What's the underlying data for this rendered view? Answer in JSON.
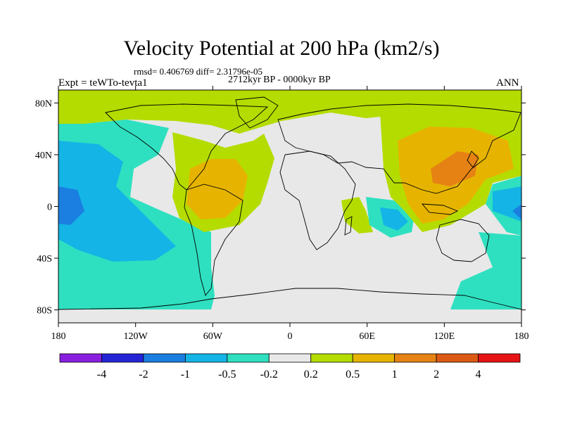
{
  "title": "Velocity Potential at 200 hPa (km2/s)",
  "stats": "rmsd= 0.406769 diff= 2.31796e-05",
  "period": "2712kyr BP - 0000kyr BP",
  "experiment": "Expt = teWTo-tevta1",
  "season": "ANN",
  "lat_ticks": [
    "80N",
    "40N",
    "0",
    "40S",
    "80S"
  ],
  "lon_ticks": [
    "180",
    "120W",
    "60W",
    "0",
    "60E",
    "120E",
    "180"
  ],
  "colorbar": {
    "labels": [
      "-4",
      "-2",
      "-1",
      "-0.5",
      "-0.2",
      "0.2",
      "0.5",
      "1",
      "2",
      "4"
    ],
    "colors": [
      "#8a1fe0",
      "#2424d6",
      "#1a7fe0",
      "#14b4e6",
      "#2ee0c0",
      "#e8e8e8",
      "#b4dc00",
      "#e6b400",
      "#e68214",
      "#dc5a14",
      "#e61414"
    ]
  },
  "fills": {
    "land_outline": "#000000",
    "neutral": "#e8e8e8",
    "pos_light": "#b4dc00",
    "pos_mid": "#e6b400",
    "pos_high": "#e68214",
    "neg_light": "#2ee0c0",
    "neg_mid": "#14b4e6",
    "neg_high": "#1a7fe0"
  }
}
